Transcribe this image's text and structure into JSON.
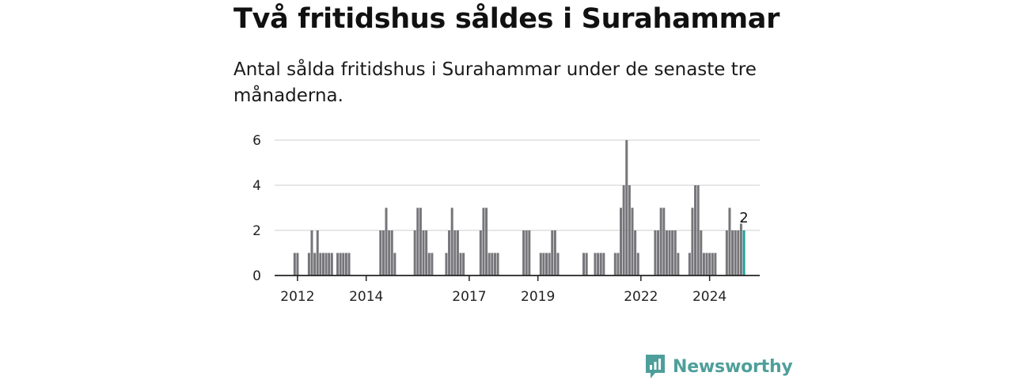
{
  "title": "Två fritidshus såldes i Surahammar",
  "subtitle": "Antal sålda fritidshus i Surahammar under de senaste tre månaderna.",
  "brand": {
    "name": "Newsworthy"
  },
  "colors": {
    "bar": "#76767a",
    "highlight": "#1a9e96",
    "grid": "#d8d8d8",
    "axis": "#222222",
    "brand": "#4e9f9b"
  },
  "chart_data": {
    "type": "bar",
    "title": "Två fritidshus såldes i Surahammar",
    "xlabel": "",
    "ylabel": "",
    "ylim": [
      0,
      6
    ],
    "yticks": [
      0,
      2,
      4,
      6
    ],
    "xticks": [
      {
        "label": "2012",
        "x": "2012-01"
      },
      {
        "label": "2014",
        "x": "2014-01"
      },
      {
        "label": "2017",
        "x": "2017-01"
      },
      {
        "label": "2019",
        "x": "2019-01"
      },
      {
        "label": "2022",
        "x": "2022-01"
      },
      {
        "label": "2024",
        "x": "2024-01"
      }
    ],
    "xrange": [
      "2011-05",
      "2025-06"
    ],
    "grid": true,
    "highlight_label": "2",
    "points": [
      {
        "x": "2011-12",
        "y": 1
      },
      {
        "x": "2012-01",
        "y": 1
      },
      {
        "x": "2012-05",
        "y": 1
      },
      {
        "x": "2012-06",
        "y": 2
      },
      {
        "x": "2012-07",
        "y": 1
      },
      {
        "x": "2012-08",
        "y": 2
      },
      {
        "x": "2012-09",
        "y": 1
      },
      {
        "x": "2012-10",
        "y": 1
      },
      {
        "x": "2012-11",
        "y": 1
      },
      {
        "x": "2012-12",
        "y": 1
      },
      {
        "x": "2013-01",
        "y": 1
      },
      {
        "x": "2013-03",
        "y": 1
      },
      {
        "x": "2013-04",
        "y": 1
      },
      {
        "x": "2013-05",
        "y": 1
      },
      {
        "x": "2013-06",
        "y": 1
      },
      {
        "x": "2013-07",
        "y": 1
      },
      {
        "x": "2014-06",
        "y": 2
      },
      {
        "x": "2014-07",
        "y": 2
      },
      {
        "x": "2014-08",
        "y": 3
      },
      {
        "x": "2014-09",
        "y": 2
      },
      {
        "x": "2014-10",
        "y": 2
      },
      {
        "x": "2014-11",
        "y": 1
      },
      {
        "x": "2015-06",
        "y": 2
      },
      {
        "x": "2015-07",
        "y": 3
      },
      {
        "x": "2015-08",
        "y": 3
      },
      {
        "x": "2015-09",
        "y": 2
      },
      {
        "x": "2015-10",
        "y": 2
      },
      {
        "x": "2015-11",
        "y": 1
      },
      {
        "x": "2015-12",
        "y": 1
      },
      {
        "x": "2016-05",
        "y": 1
      },
      {
        "x": "2016-06",
        "y": 2
      },
      {
        "x": "2016-07",
        "y": 3
      },
      {
        "x": "2016-08",
        "y": 2
      },
      {
        "x": "2016-09",
        "y": 2
      },
      {
        "x": "2016-10",
        "y": 1
      },
      {
        "x": "2016-11",
        "y": 1
      },
      {
        "x": "2017-05",
        "y": 2
      },
      {
        "x": "2017-06",
        "y": 3
      },
      {
        "x": "2017-07",
        "y": 3
      },
      {
        "x": "2017-08",
        "y": 1
      },
      {
        "x": "2017-09",
        "y": 1
      },
      {
        "x": "2017-10",
        "y": 1
      },
      {
        "x": "2017-11",
        "y": 1
      },
      {
        "x": "2018-08",
        "y": 2
      },
      {
        "x": "2018-09",
        "y": 2
      },
      {
        "x": "2018-10",
        "y": 2
      },
      {
        "x": "2019-02",
        "y": 1
      },
      {
        "x": "2019-03",
        "y": 1
      },
      {
        "x": "2019-04",
        "y": 1
      },
      {
        "x": "2019-05",
        "y": 1
      },
      {
        "x": "2019-06",
        "y": 2
      },
      {
        "x": "2019-07",
        "y": 2
      },
      {
        "x": "2019-08",
        "y": 1
      },
      {
        "x": "2020-05",
        "y": 1
      },
      {
        "x": "2020-06",
        "y": 1
      },
      {
        "x": "2020-09",
        "y": 1
      },
      {
        "x": "2020-10",
        "y": 1
      },
      {
        "x": "2020-11",
        "y": 1
      },
      {
        "x": "2020-12",
        "y": 1
      },
      {
        "x": "2021-04",
        "y": 1
      },
      {
        "x": "2021-05",
        "y": 1
      },
      {
        "x": "2021-06",
        "y": 3
      },
      {
        "x": "2021-07",
        "y": 4
      },
      {
        "x": "2021-08",
        "y": 6
      },
      {
        "x": "2021-09",
        "y": 4
      },
      {
        "x": "2021-10",
        "y": 3
      },
      {
        "x": "2021-11",
        "y": 2
      },
      {
        "x": "2021-12",
        "y": 1
      },
      {
        "x": "2022-06",
        "y": 2
      },
      {
        "x": "2022-07",
        "y": 2
      },
      {
        "x": "2022-08",
        "y": 3
      },
      {
        "x": "2022-09",
        "y": 3
      },
      {
        "x": "2022-10",
        "y": 2
      },
      {
        "x": "2022-11",
        "y": 2
      },
      {
        "x": "2022-12",
        "y": 2
      },
      {
        "x": "2023-01",
        "y": 2
      },
      {
        "x": "2023-02",
        "y": 1
      },
      {
        "x": "2023-06",
        "y": 1
      },
      {
        "x": "2023-07",
        "y": 3
      },
      {
        "x": "2023-08",
        "y": 4
      },
      {
        "x": "2023-09",
        "y": 4
      },
      {
        "x": "2023-10",
        "y": 2
      },
      {
        "x": "2023-11",
        "y": 1
      },
      {
        "x": "2023-12",
        "y": 1
      },
      {
        "x": "2024-01",
        "y": 1
      },
      {
        "x": "2024-02",
        "y": 1
      },
      {
        "x": "2024-03",
        "y": 1
      },
      {
        "x": "2024-07",
        "y": 2
      },
      {
        "x": "2024-08",
        "y": 3
      },
      {
        "x": "2024-09",
        "y": 2
      },
      {
        "x": "2024-10",
        "y": 2
      },
      {
        "x": "2024-11",
        "y": 2
      },
      {
        "x": "2024-12",
        "y": 2.3
      },
      {
        "x": "2025-01",
        "y": 2,
        "highlight": true
      }
    ]
  }
}
